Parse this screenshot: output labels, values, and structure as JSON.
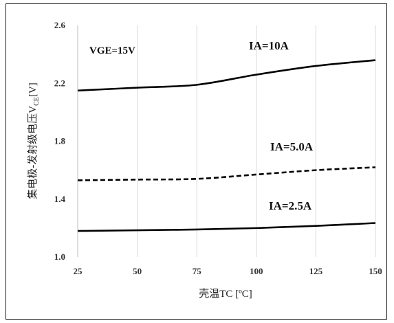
{
  "chart_data": {
    "type": "line",
    "xlabel": "壳温TC [ºC]",
    "ylabel": {
      "prefix": "集电极-发射级电压V",
      "sub": "CE",
      "suffix": "[V]"
    },
    "xticks": [
      "25",
      "50",
      "75",
      "100",
      "125",
      "150"
    ],
    "yticks": [
      "1.0",
      "1.4",
      "1.8",
      "2.2",
      "2.6"
    ],
    "xlim": [
      25,
      150
    ],
    "ylim": [
      1.0,
      2.6
    ],
    "grid": "vertical",
    "annotations": [
      {
        "text": "VGE=15V"
      },
      {
        "text": "IA=10A"
      },
      {
        "text": "IA=5.0A"
      },
      {
        "text": "IA=2.5A"
      }
    ],
    "x": [
      25,
      50,
      75,
      100,
      125,
      150
    ],
    "series": [
      {
        "values": [
          2.15,
          2.17,
          2.19,
          2.26,
          2.32,
          2.36
        ],
        "color": "#000000",
        "style": "solid"
      },
      {
        "values": [
          1.53,
          1.535,
          1.54,
          1.57,
          1.6,
          1.62
        ],
        "color": "#000000",
        "style": "dashed"
      },
      {
        "values": [
          1.18,
          1.185,
          1.19,
          1.2,
          1.215,
          1.235
        ],
        "color": "#000000",
        "style": "solid"
      }
    ]
  }
}
